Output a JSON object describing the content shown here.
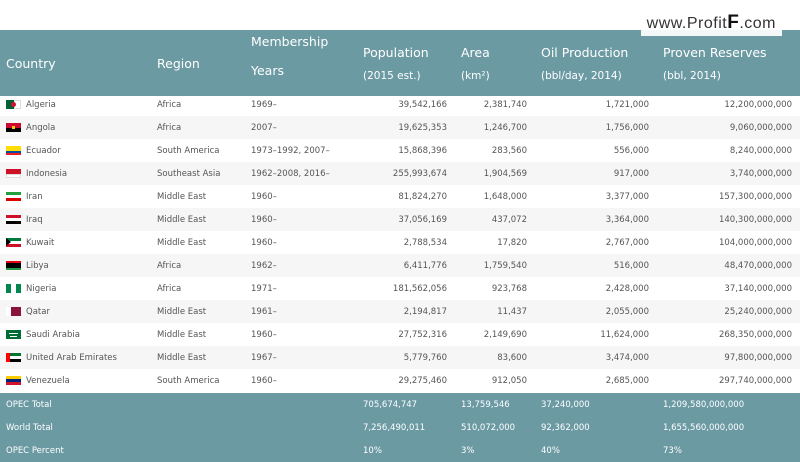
{
  "watermark": {
    "prefix": "www.",
    "main": "Profit",
    "big": "F",
    "suffix": ".com"
  },
  "header": {
    "country": "Country",
    "region": "Region",
    "membership_l1": "Membership",
    "membership_l2": "Years",
    "population": "Population",
    "population_sub": "(2015 est.)",
    "area": "Area",
    "area_sub": "(km²)",
    "oil": "Oil Production",
    "oil_sub": "(bbl/day, 2014)",
    "reserves": "Proven Reserves",
    "reserves_sub": "(bbl, 2014)"
  },
  "rows": [
    {
      "country": "Algeria",
      "flag": "algeria-flag-icon",
      "region": "Africa",
      "years": "1969–",
      "population": "39,542,166",
      "area": "2,381,740",
      "oil": "1,721,000",
      "reserves": "12,200,000,000"
    },
    {
      "country": "Angola",
      "flag": "angola-flag-icon",
      "region": "Africa",
      "years": "2007–",
      "population": "19,625,353",
      "area": "1,246,700",
      "oil": "1,756,000",
      "reserves": "9,060,000,000"
    },
    {
      "country": "Ecuador",
      "flag": "ecuador-flag-icon",
      "region": "South America",
      "years": "1973–1992, 2007–",
      "population": "15,868,396",
      "area": "283,560",
      "oil": "556,000",
      "reserves": "8,240,000,000"
    },
    {
      "country": "Indonesia",
      "flag": "indonesia-flag-icon",
      "region": "Southeast Asia",
      "years": "1962–2008, 2016–",
      "population": "255,993,674",
      "area": "1,904,569",
      "oil": "917,000",
      "reserves": "3,740,000,000"
    },
    {
      "country": "Iran",
      "flag": "iran-flag-icon",
      "region": "Middle East",
      "years": "1960–",
      "population": "81,824,270",
      "area": "1,648,000",
      "oil": "3,377,000",
      "reserves": "157,300,000,000"
    },
    {
      "country": "Iraq",
      "flag": "iraq-flag-icon",
      "region": "Middle East",
      "years": "1960–",
      "population": "37,056,169",
      "area": "437,072",
      "oil": "3,364,000",
      "reserves": "140,300,000,000"
    },
    {
      "country": "Kuwait",
      "flag": "kuwait-flag-icon",
      "region": "Middle East",
      "years": "1960–",
      "population": "2,788,534",
      "area": "17,820",
      "oil": "2,767,000",
      "reserves": "104,000,000,000"
    },
    {
      "country": "Libya",
      "flag": "libya-flag-icon",
      "region": "Africa",
      "years": "1962–",
      "population": "6,411,776",
      "area": "1,759,540",
      "oil": "516,000",
      "reserves": "48,470,000,000"
    },
    {
      "country": "Nigeria",
      "flag": "nigeria-flag-icon",
      "region": "Africa",
      "years": "1971–",
      "population": "181,562,056",
      "area": "923,768",
      "oil": "2,428,000",
      "reserves": "37,140,000,000"
    },
    {
      "country": "Qatar",
      "flag": "qatar-flag-icon",
      "region": "Middle East",
      "years": "1961–",
      "population": "2,194,817",
      "area": "11,437",
      "oil": "2,055,000",
      "reserves": "25,240,000,000"
    },
    {
      "country": "Saudi Arabia",
      "flag": "saudi-arabia-flag-icon",
      "region": "Middle East",
      "years": "1960–",
      "population": "27,752,316",
      "area": "2,149,690",
      "oil": "11,624,000",
      "reserves": "268,350,000,000"
    },
    {
      "country": "United Arab Emirates",
      "flag": "uae-flag-icon",
      "region": "Middle East",
      "years": "1967–",
      "population": "5,779,760",
      "area": "83,600",
      "oil": "3,474,000",
      "reserves": "97,800,000,000"
    },
    {
      "country": "Venezuela",
      "flag": "venezuela-flag-icon",
      "region": "South America",
      "years": "1960–",
      "population": "29,275,460",
      "area": "912,050",
      "oil": "2,685,000",
      "reserves": "297,740,000,000"
    }
  ],
  "totals": [
    {
      "label": "OPEC Total",
      "population": "705,674,747",
      "area": "13,759,546",
      "oil": "37,240,000",
      "reserves": "1,209,580,000,000"
    },
    {
      "label": "World Total",
      "population": "7,256,490,011",
      "area": "510,072,000",
      "oil": "92,362,000",
      "reserves": "1,655,560,000,000"
    },
    {
      "label": "OPEC Percent",
      "population": "10%",
      "area": "3%",
      "oil": "40%",
      "reserves": "73%"
    }
  ],
  "colors": {
    "header_bg": "#6b9aa3",
    "row_alt": "#f6f6f6",
    "text": "#555555"
  }
}
